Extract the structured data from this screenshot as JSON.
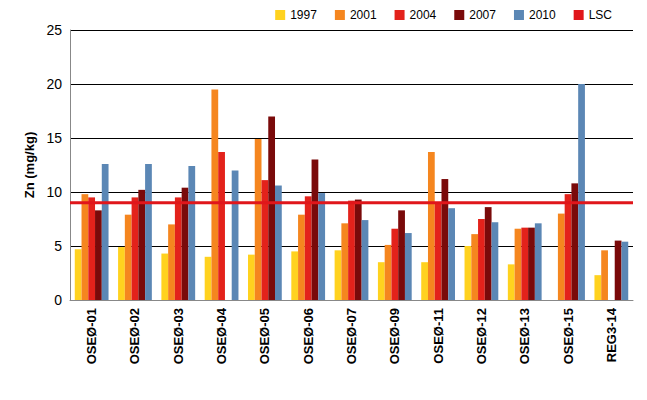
{
  "chart_data": {
    "type": "bar",
    "y_label": "Zn (mg/kg)",
    "categories": [
      "OSEØ-01",
      "OSEØ-02",
      "OSEØ-03",
      "OSEØ-04",
      "OSEØ-05",
      "OSEØ-06",
      "OSEØ-07",
      "OSEØ-09",
      "OSEØ-11",
      "OSEØ-12",
      "OSEØ-13",
      "OSEØ-15",
      "REG3-14"
    ],
    "series": [
      {
        "name": "1997",
        "color": "#ffd21f",
        "values": [
          4.7,
          4.9,
          4.3,
          4.0,
          4.2,
          4.5,
          4.6,
          3.5,
          3.5,
          5.0,
          3.3,
          null,
          2.3
        ]
      },
      {
        "name": "2001",
        "color": "#f5861f",
        "values": [
          9.8,
          7.9,
          7.0,
          19.5,
          14.9,
          7.9,
          7.1,
          5.1,
          13.7,
          6.1,
          6.6,
          8.0,
          4.6
        ]
      },
      {
        "name": "2004",
        "color": "#e3221b",
        "values": [
          9.5,
          9.5,
          9.5,
          13.7,
          11.1,
          9.6,
          9.2,
          6.6,
          9.0,
          7.5,
          6.7,
          9.8,
          null
        ]
      },
      {
        "name": "2007",
        "color": "#7a0a0a",
        "values": [
          8.3,
          10.2,
          10.4,
          null,
          17.0,
          13.0,
          9.3,
          8.3,
          11.2,
          8.6,
          6.7,
          10.8,
          5.5
        ]
      },
      {
        "name": "2010",
        "color": "#5b87b5",
        "values": [
          12.6,
          12.6,
          12.4,
          12.0,
          10.6,
          9.9,
          7.4,
          6.2,
          8.5,
          7.2,
          7.1,
          20.0,
          5.4
        ]
      },
      {
        "name": "LSC",
        "type": "line",
        "color": "#e0161b",
        "values": [
          9,
          9,
          9,
          9,
          9,
          9,
          9,
          9,
          9,
          9,
          9,
          9,
          9
        ]
      }
    ],
    "ylim": [
      0,
      25
    ],
    "yticks": [
      0,
      5,
      10,
      15,
      20,
      25
    ],
    "grid": true,
    "legend": "top"
  }
}
